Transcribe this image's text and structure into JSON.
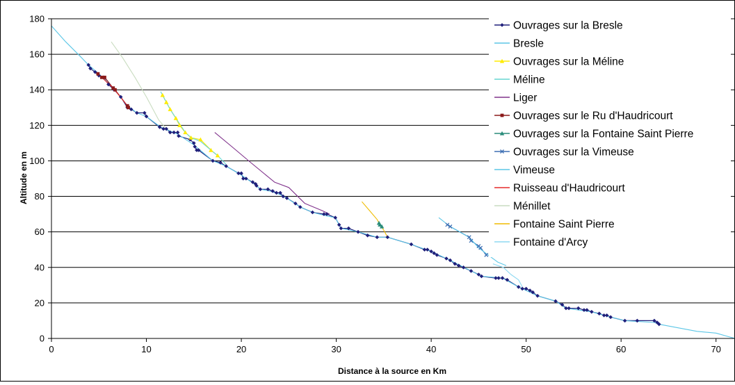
{
  "chart_data": {
    "type": "line",
    "xlabel": "Distance à la source en Km",
    "ylabel": "Altitude en m",
    "xlim": [
      0,
      72
    ],
    "ylim": [
      0,
      180
    ],
    "xticks": [
      0,
      10,
      20,
      30,
      40,
      50,
      60,
      70
    ],
    "yticks": [
      0,
      20,
      40,
      60,
      80,
      100,
      120,
      140,
      160,
      180
    ],
    "grid": "horizontal",
    "legend_position": "right",
    "series": [
      {
        "name": "Ouvrages sur la Bresle",
        "kind": "markers-line",
        "marker": "diamond",
        "color": "#1f1f7a",
        "points": [
          [
            3.9,
            154
          ],
          [
            4.1,
            152
          ],
          [
            4.6,
            150
          ],
          [
            5.0,
            148
          ],
          [
            5.5,
            147
          ],
          [
            6.0,
            143
          ],
          [
            6.6,
            140
          ],
          [
            7.3,
            136
          ],
          [
            8.0,
            130
          ],
          [
            8.4,
            129
          ],
          [
            9.0,
            127
          ],
          [
            9.8,
            127
          ],
          [
            10.0,
            125
          ],
          [
            11.4,
            119
          ],
          [
            11.8,
            118
          ],
          [
            12.1,
            118
          ],
          [
            12.5,
            116
          ],
          [
            12.9,
            116
          ],
          [
            13.3,
            116
          ],
          [
            13.4,
            114
          ],
          [
            14.6,
            112
          ],
          [
            15.0,
            110
          ],
          [
            15.1,
            108
          ],
          [
            15.3,
            106
          ],
          [
            15.5,
            106
          ],
          [
            17.0,
            100
          ],
          [
            17.8,
            99
          ],
          [
            18.4,
            97
          ],
          [
            19.7,
            93
          ],
          [
            20.0,
            93
          ],
          [
            20.2,
            90
          ],
          [
            20.5,
            90
          ],
          [
            21.2,
            88
          ],
          [
            21.5,
            87
          ],
          [
            21.6,
            86
          ],
          [
            22.0,
            84
          ],
          [
            22.8,
            84
          ],
          [
            23.3,
            83
          ],
          [
            23.7,
            82
          ],
          [
            24.1,
            82
          ],
          [
            24.4,
            80
          ],
          [
            24.8,
            79
          ],
          [
            25.7,
            76
          ],
          [
            26.2,
            74
          ],
          [
            27.5,
            71
          ],
          [
            28.7,
            70
          ],
          [
            29.0,
            70
          ],
          [
            29.9,
            68
          ],
          [
            30.3,
            64
          ],
          [
            30.5,
            62
          ],
          [
            31.3,
            62
          ],
          [
            32.3,
            60
          ],
          [
            33.3,
            58
          ],
          [
            34.3,
            57
          ],
          [
            35.4,
            57
          ],
          [
            37.9,
            53
          ],
          [
            39.3,
            50
          ],
          [
            39.6,
            50
          ],
          [
            40.0,
            49
          ],
          [
            40.3,
            48
          ],
          [
            40.6,
            47
          ],
          [
            41.6,
            45
          ],
          [
            42.0,
            44
          ],
          [
            42.5,
            42
          ],
          [
            42.9,
            41
          ],
          [
            43.4,
            40
          ],
          [
            44.2,
            38
          ],
          [
            45.0,
            36
          ],
          [
            45.3,
            35
          ],
          [
            46.8,
            34
          ],
          [
            47.1,
            34
          ],
          [
            47.5,
            34
          ],
          [
            48.0,
            33
          ],
          [
            49.2,
            29
          ],
          [
            49.6,
            28
          ],
          [
            50.0,
            28
          ],
          [
            50.4,
            27
          ],
          [
            50.7,
            26
          ],
          [
            51.2,
            24
          ],
          [
            53.1,
            21
          ],
          [
            53.8,
            19
          ],
          [
            54.2,
            17
          ],
          [
            54.5,
            17
          ],
          [
            55.5,
            17
          ],
          [
            56.1,
            16
          ],
          [
            56.4,
            16
          ],
          [
            56.9,
            15
          ],
          [
            57.7,
            14
          ],
          [
            58.2,
            13
          ],
          [
            58.5,
            13
          ],
          [
            58.9,
            12
          ],
          [
            60.4,
            10
          ],
          [
            61.7,
            10
          ],
          [
            63.5,
            10
          ],
          [
            63.8,
            9
          ],
          [
            64.0,
            8
          ]
        ]
      },
      {
        "name": "Bresle",
        "kind": "line",
        "color": "#5bc6e6",
        "points": [
          [
            0,
            176
          ],
          [
            1.5,
            167
          ],
          [
            3.0,
            159
          ],
          [
            3.9,
            154
          ],
          [
            5.0,
            149
          ],
          [
            6.5,
            141
          ],
          [
            8.0,
            131
          ],
          [
            9.0,
            127
          ],
          [
            10.0,
            125
          ],
          [
            11.5,
            119
          ],
          [
            13.3,
            115
          ],
          [
            15.0,
            109
          ],
          [
            17.0,
            100
          ],
          [
            18.4,
            97
          ],
          [
            20.0,
            92
          ],
          [
            21.6,
            86
          ],
          [
            22.0,
            84
          ],
          [
            23.0,
            83
          ],
          [
            24.1,
            81
          ],
          [
            24.8,
            79
          ],
          [
            26.2,
            74
          ],
          [
            27.5,
            71
          ],
          [
            29.0,
            69
          ],
          [
            29.9,
            68
          ],
          [
            30.5,
            62
          ],
          [
            32.3,
            60
          ],
          [
            34.3,
            57
          ],
          [
            35.4,
            57
          ],
          [
            37.9,
            53
          ],
          [
            40.0,
            49
          ],
          [
            42.0,
            44
          ],
          [
            44.2,
            38
          ],
          [
            45.3,
            35
          ],
          [
            47.5,
            34
          ],
          [
            49.2,
            29
          ],
          [
            51.2,
            24
          ],
          [
            53.1,
            21
          ],
          [
            54.2,
            17
          ],
          [
            56.9,
            15
          ],
          [
            58.2,
            13
          ],
          [
            60.4,
            10
          ],
          [
            63.5,
            9
          ],
          [
            64.0,
            8
          ],
          [
            66.0,
            6
          ],
          [
            68.0,
            4
          ],
          [
            70.0,
            3
          ],
          [
            71.3,
            1
          ],
          [
            72.0,
            0
          ]
        ]
      },
      {
        "name": "Ouvrages sur la Méline",
        "kind": "markers-line",
        "marker": "triangle",
        "color": "#ffeb00",
        "points": [
          [
            11.7,
            137
          ],
          [
            12.1,
            133
          ],
          [
            12.5,
            129
          ],
          [
            13.1,
            124
          ],
          [
            13.5,
            120
          ],
          [
            14.1,
            116
          ],
          [
            14.7,
            113
          ],
          [
            15.7,
            112
          ],
          [
            16.8,
            106
          ],
          [
            17.5,
            103
          ]
        ]
      },
      {
        "name": "Méline",
        "kind": "line",
        "color": "#66d6d1",
        "points": [
          [
            11.5,
            139
          ],
          [
            12.1,
            133
          ],
          [
            12.5,
            129
          ],
          [
            13.1,
            124
          ],
          [
            14.1,
            116
          ],
          [
            14.7,
            113
          ],
          [
            15.7,
            111
          ],
          [
            16.8,
            106
          ],
          [
            17.5,
            103
          ],
          [
            18.4,
            98
          ]
        ]
      },
      {
        "name": "Liger",
        "kind": "line",
        "color": "#80338c",
        "points": [
          [
            17.2,
            116
          ],
          [
            19.0,
            108
          ],
          [
            21.0,
            99
          ],
          [
            23.5,
            88
          ],
          [
            25.0,
            85
          ],
          [
            26.7,
            76
          ],
          [
            28.5,
            72
          ],
          [
            29.3,
            70
          ]
        ]
      },
      {
        "name": "Ouvrages sur le Ru d'Haudricourt",
        "kind": "markers-line",
        "marker": "square",
        "color": "#8b1a1a",
        "points": [
          [
            4.9,
            149
          ],
          [
            5.3,
            147
          ],
          [
            5.6,
            147
          ],
          [
            6.5,
            141
          ],
          [
            6.7,
            140
          ],
          [
            8.0,
            131
          ],
          [
            8.1,
            130
          ]
        ]
      },
      {
        "name": "Ouvrages sur la Fontaine Saint Pierre",
        "kind": "markers-line",
        "marker": "triangle",
        "color": "#2a8c7a",
        "points": [
          [
            34.5,
            65
          ],
          [
            34.6,
            64
          ],
          [
            34.8,
            63
          ]
        ]
      },
      {
        "name": "Ouvrages sur la Vimeuse",
        "kind": "markers-line",
        "marker": "cross",
        "color": "#3d6fb3",
        "points": [
          [
            41.7,
            64
          ],
          [
            42.0,
            63
          ],
          [
            44.0,
            57
          ],
          [
            44.2,
            55
          ],
          [
            45.0,
            52
          ],
          [
            45.2,
            51
          ],
          [
            45.8,
            47
          ]
        ]
      },
      {
        "name": "Vimeuse",
        "kind": "line",
        "color": "#5bc6e6",
        "points": [
          [
            40.8,
            68
          ],
          [
            42.0,
            63
          ],
          [
            43.0,
            60
          ],
          [
            44.0,
            57
          ],
          [
            45.0,
            51
          ],
          [
            46.0,
            47
          ],
          [
            47.0,
            43
          ],
          [
            47.9,
            41
          ]
        ]
      },
      {
        "name": "Ruisseau d'Haudricourt",
        "kind": "line",
        "color": "#e52a2a",
        "points": [
          [
            4.9,
            149
          ],
          [
            6.5,
            141
          ],
          [
            8.0,
            131
          ]
        ]
      },
      {
        "name": "Ménillet",
        "kind": "line",
        "color": "#c9dcc0",
        "points": [
          [
            6.3,
            167
          ],
          [
            7.5,
            158
          ],
          [
            8.8,
            147
          ],
          [
            10.0,
            136
          ],
          [
            11.3,
            123
          ],
          [
            12.1,
            118
          ]
        ]
      },
      {
        "name": "Fontaine Saint Pierre",
        "kind": "line",
        "color": "#f0bc00",
        "points": [
          [
            32.7,
            77
          ],
          [
            33.5,
            72
          ],
          [
            34.3,
            67
          ],
          [
            34.6,
            64
          ],
          [
            35.0,
            61
          ],
          [
            35.4,
            57
          ]
        ]
      },
      {
        "name": "Fontaine d'Arcy",
        "kind": "line",
        "color": "#8ed9f2",
        "points": [
          [
            46.5,
            42
          ],
          [
            47.6,
            40
          ],
          [
            48.4,
            36
          ],
          [
            49.2,
            33
          ],
          [
            49.6,
            29
          ]
        ]
      }
    ]
  }
}
